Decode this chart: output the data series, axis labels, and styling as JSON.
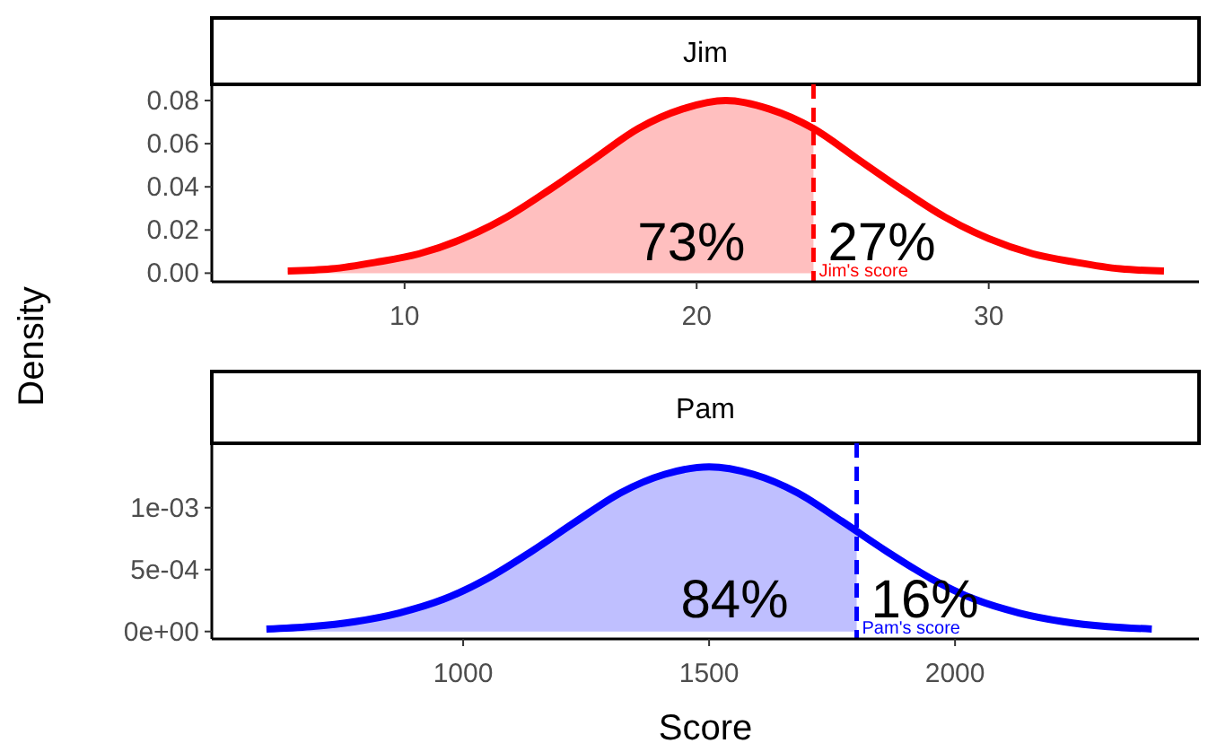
{
  "chart_data": [
    {
      "type": "line",
      "title": "Jim",
      "ylabel": "Density",
      "xlim": [
        3.4,
        37.2
      ],
      "ylim": [
        -0.004,
        0.0875
      ],
      "xticks": [
        10,
        20,
        30
      ],
      "yticks": [
        {
          "value": 0,
          "label": "0.00"
        },
        {
          "value": 0.02,
          "label": "0.02"
        },
        {
          "value": 0.04,
          "label": "0.04"
        },
        {
          "value": 0.06,
          "label": "0.06"
        },
        {
          "value": 0.08,
          "label": "0.08"
        }
      ],
      "grid": false,
      "series": [
        {
          "type": "area",
          "color": "#ffbfbf",
          "x": [
            6,
            7.5,
            9,
            10.5,
            12,
            13.5,
            15,
            16.5,
            18,
            19.5,
            21,
            22.5,
            24
          ],
          "values": [
            0.001,
            0.002,
            0.005,
            0.009,
            0.016,
            0.026,
            0.039,
            0.053,
            0.067,
            0.076,
            0.08,
            0.076,
            0.067
          ]
        },
        {
          "type": "line",
          "color": "#ff0000",
          "x": [
            6,
            7.5,
            9,
            10.5,
            12,
            13.5,
            15,
            16.5,
            18,
            19.5,
            21,
            22.5,
            24,
            25.5,
            27,
            28.5,
            30,
            31.5,
            33,
            34.5,
            36
          ],
          "values": [
            0.001,
            0.002,
            0.005,
            0.009,
            0.016,
            0.026,
            0.039,
            0.053,
            0.067,
            0.076,
            0.08,
            0.076,
            0.067,
            0.053,
            0.039,
            0.026,
            0.016,
            0.009,
            0.005,
            0.002,
            0.001
          ]
        }
      ],
      "ref_lines": [
        {
          "axis": "x",
          "value": 24,
          "label": "Jim's score",
          "color": "#ff0000",
          "line_style": "dashed"
        }
      ],
      "annotations": [
        "73%",
        "27%"
      ]
    },
    {
      "type": "line",
      "title": "Pam",
      "xlabel": "Score",
      "xlim": [
        489,
        2496
      ],
      "ylim": [
        -6e-05,
        0.00152
      ],
      "xticks": [
        1000,
        1500,
        2000
      ],
      "yticks": [
        {
          "value": 0,
          "label": "0e+00"
        },
        {
          "value": 0.0005,
          "label": "5e-04"
        },
        {
          "value": 0.001,
          "label": "1e-03"
        }
      ],
      "grid": false,
      "series": [
        {
          "type": "area",
          "color": "#bfbfff",
          "x": [
            600,
            690,
            780,
            870,
            960,
            1050,
            1140,
            1230,
            1320,
            1410,
            1500,
            1590,
            1680,
            1770,
            1800
          ],
          "values": [
            2e-05,
            4e-05,
            8e-05,
            0.00015,
            0.00026,
            0.00043,
            0.00065,
            0.00089,
            0.00112,
            0.00127,
            0.00133,
            0.00127,
            0.00112,
            0.00089,
            0.00081
          ]
        },
        {
          "type": "line",
          "color": "#0000ff",
          "x": [
            600,
            690,
            780,
            870,
            960,
            1050,
            1140,
            1230,
            1320,
            1410,
            1500,
            1590,
            1680,
            1770,
            1860,
            1950,
            2040,
            2130,
            2220,
            2310,
            2400
          ],
          "values": [
            2e-05,
            4e-05,
            8e-05,
            0.00015,
            0.00026,
            0.00043,
            0.00065,
            0.00089,
            0.00112,
            0.00127,
            0.00133,
            0.00127,
            0.00112,
            0.00089,
            0.00065,
            0.00043,
            0.00026,
            0.00015,
            8e-05,
            4e-05,
            2e-05
          ]
        }
      ],
      "ref_lines": [
        {
          "axis": "x",
          "value": 1800,
          "label": "Pam's score",
          "color": "#0000ff",
          "line_style": "dashed"
        }
      ],
      "annotations": [
        "84%",
        "16%"
      ]
    }
  ]
}
